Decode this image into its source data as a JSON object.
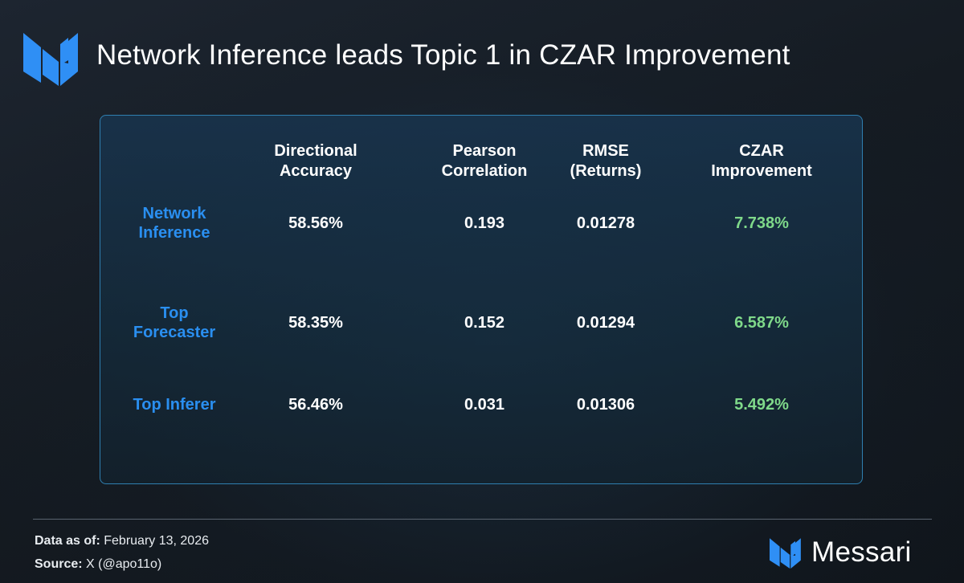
{
  "header": {
    "title": "Network Inference leads Topic 1 in CZAR Improvement"
  },
  "chart_data": {
    "type": "table",
    "columns": [
      [
        "Directional",
        "Accuracy"
      ],
      [
        "Pearson",
        "Correlation"
      ],
      [
        "RMSE",
        "(Returns)"
      ],
      [
        "CZAR",
        "Improvement"
      ]
    ],
    "rows": [
      {
        "label": [
          "Network",
          "Inference"
        ],
        "values": [
          "58.56%",
          "0.193",
          "0.01278",
          "7.738%"
        ]
      },
      {
        "label": [
          "Top",
          "Forecaster"
        ],
        "values": [
          "58.35%",
          "0.152",
          "0.01294",
          "6.587%"
        ]
      },
      {
        "label": [
          "Top Inferer"
        ],
        "values": [
          "56.46%",
          "0.031",
          "0.01306",
          "5.492%"
        ]
      }
    ]
  },
  "footer": {
    "data_as_of_label": "Data as of:",
    "data_as_of_value": "February 13, 2026",
    "source_label": "Source:",
    "source_value": "X (@apo11o)",
    "brand_name": "Messari"
  },
  "colors": {
    "accent_blue": "#2a8ff0",
    "positive_green": "#7fd98a",
    "logo_blue": "#2f8ff5",
    "panel_border": "#2f7fb0"
  },
  "icons": {
    "header_logo": "messari-logo-icon",
    "footer_logo": "messari-logo-icon"
  }
}
